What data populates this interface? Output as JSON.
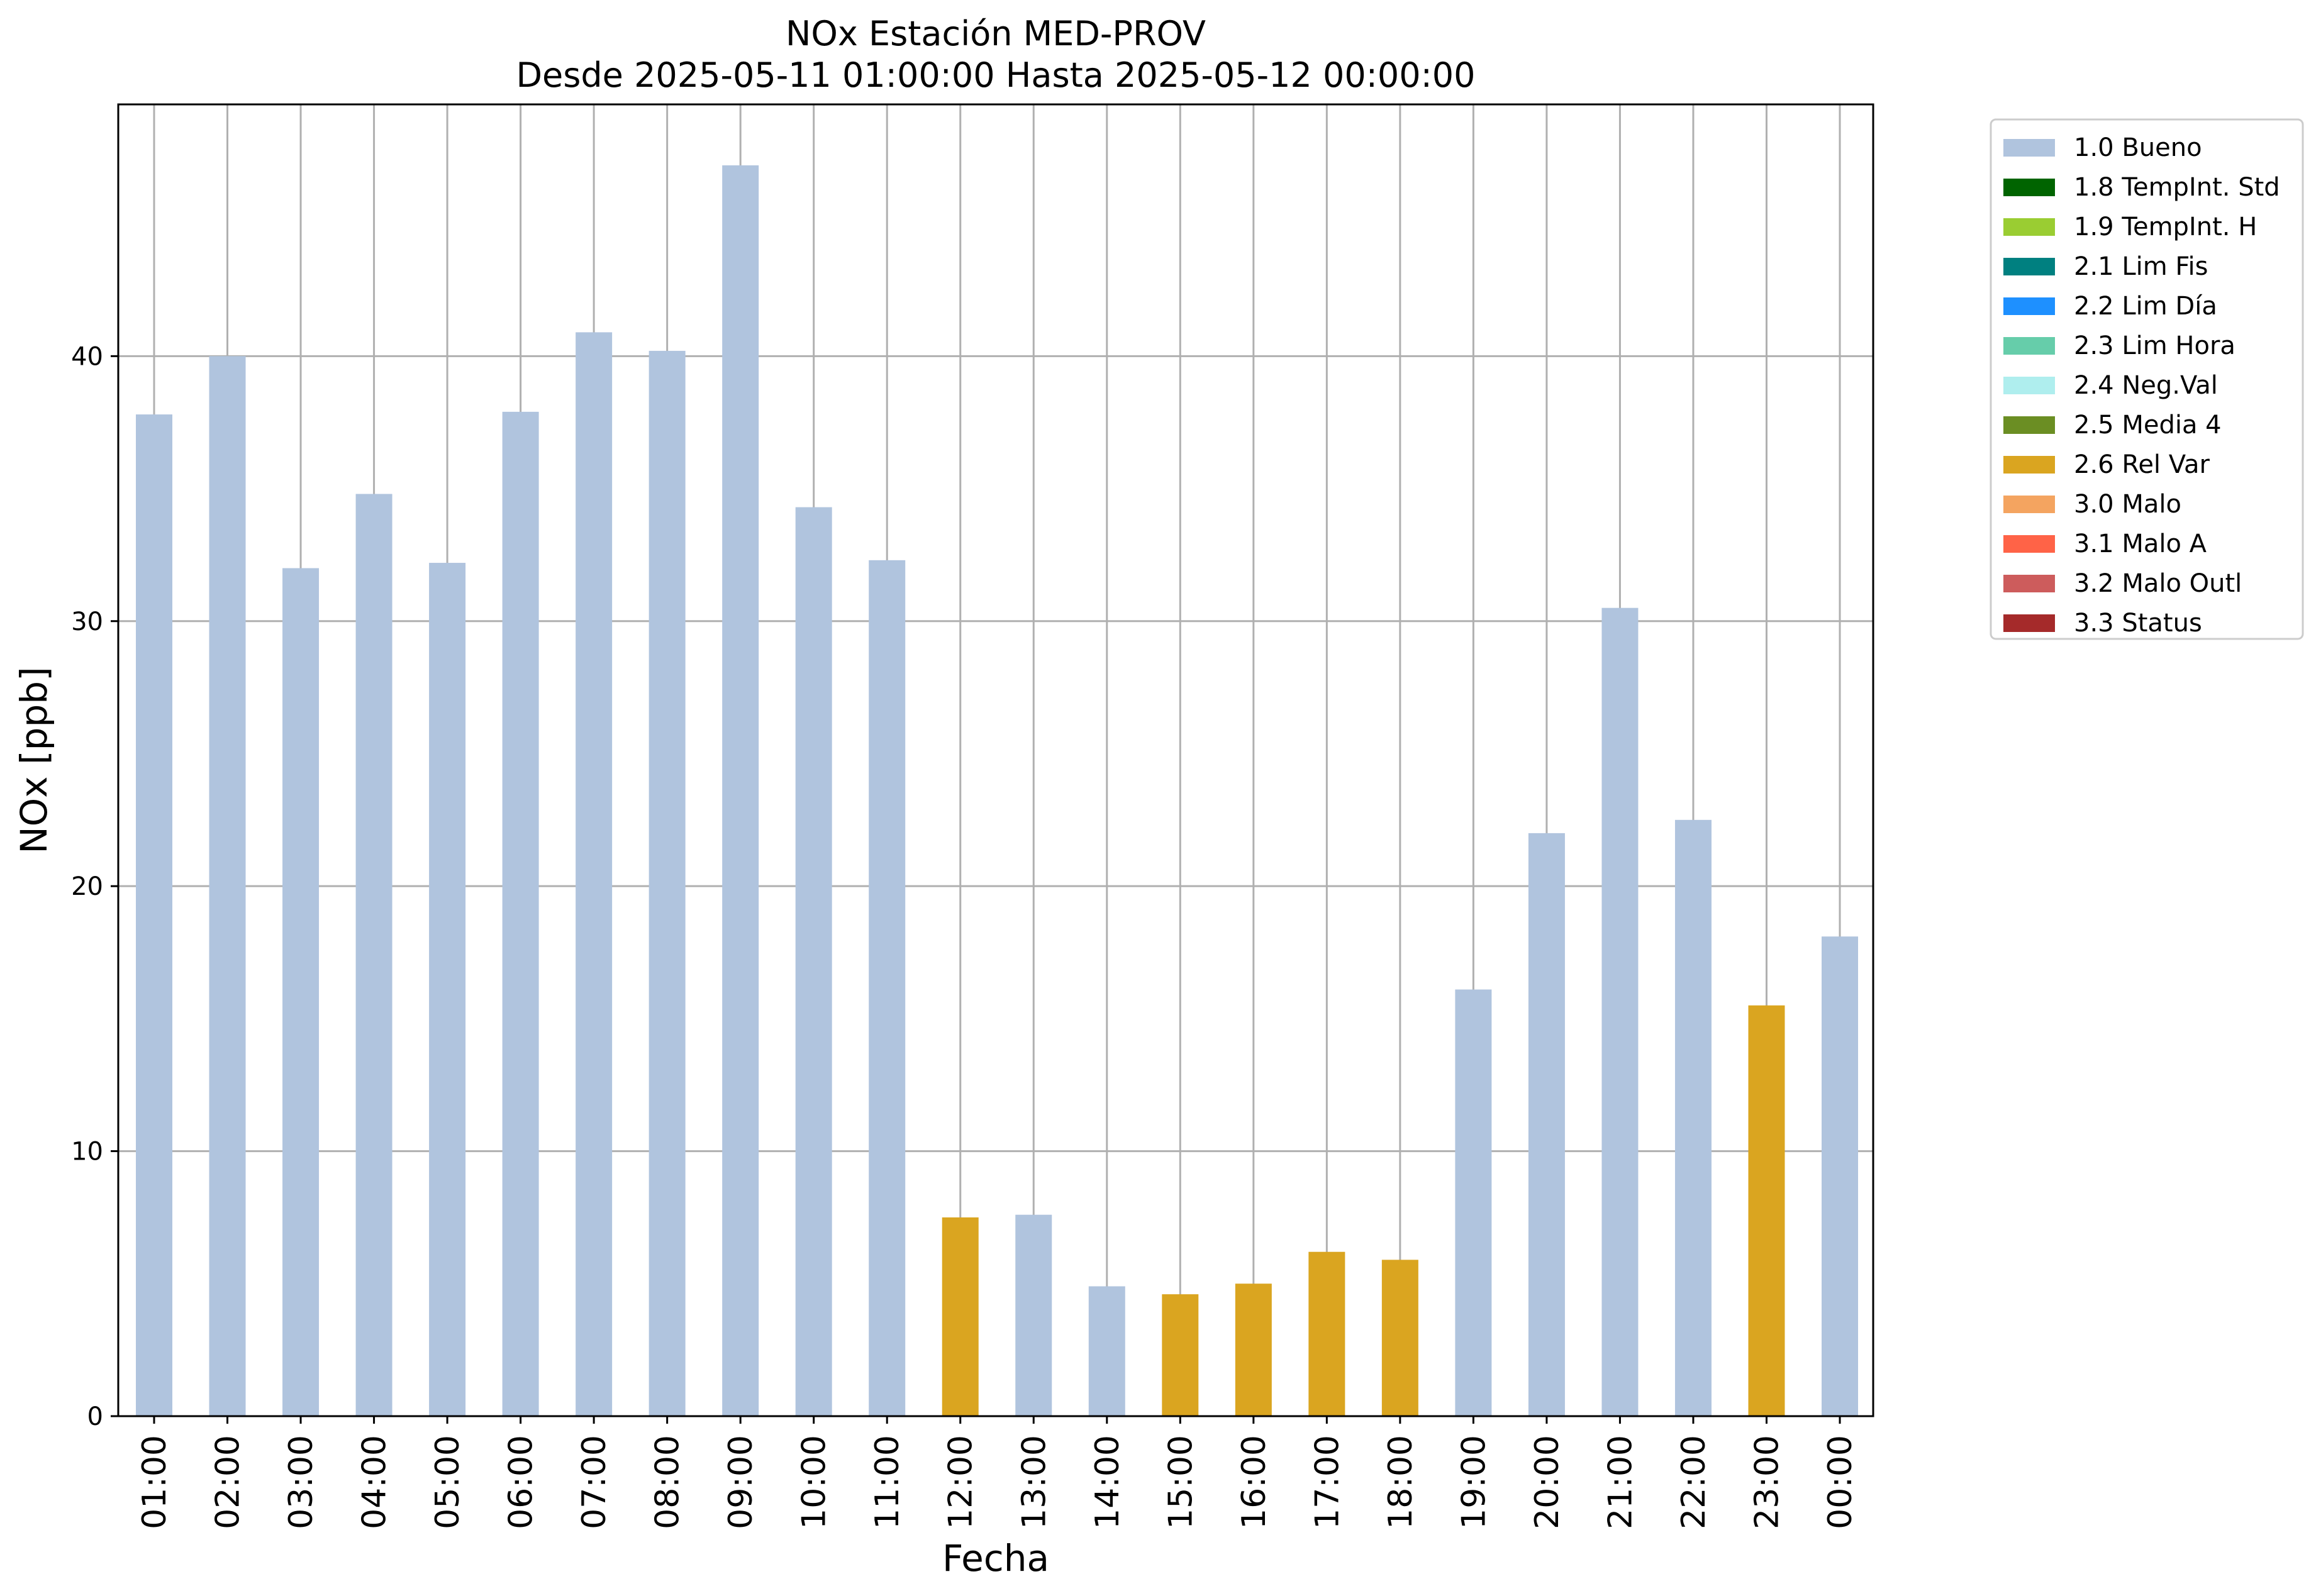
{
  "chart_data": {
    "type": "bar",
    "title": "NOx Estación MED-PROV",
    "subtitle": "Desde 2025-05-11 01:00:00 Hasta 2025-05-12 00:00:00",
    "xlabel": "Fecha",
    "ylabel": "NOx [ppb]",
    "ylim": [
      0,
      49.5
    ],
    "yticks": [
      0,
      10,
      20,
      30,
      40
    ],
    "grid": true,
    "legend_position": "outside-top-right",
    "categories": [
      "01:00",
      "02:00",
      "03:00",
      "04:00",
      "05:00",
      "06:00",
      "07:00",
      "08:00",
      "09:00",
      "10:00",
      "11:00",
      "12:00",
      "13:00",
      "14:00",
      "15:00",
      "16:00",
      "17:00",
      "18:00",
      "19:00",
      "20:00",
      "21:00",
      "22:00",
      "23:00",
      "00:00"
    ],
    "values": [
      37.8,
      40.0,
      32.0,
      34.8,
      32.2,
      37.9,
      40.9,
      40.2,
      47.2,
      34.3,
      32.3,
      7.5,
      7.6,
      4.9,
      4.6,
      5.0,
      6.2,
      5.9,
      16.1,
      22.0,
      30.5,
      22.5,
      15.5,
      18.1
    ],
    "flags": [
      "1.0 Bueno",
      "1.0 Bueno",
      "1.0 Bueno",
      "1.0 Bueno",
      "1.0 Bueno",
      "1.0 Bueno",
      "1.0 Bueno",
      "1.0 Bueno",
      "1.0 Bueno",
      "1.0 Bueno",
      "1.0 Bueno",
      "2.6 Rel Var",
      "1.0 Bueno",
      "1.0 Bueno",
      "2.6 Rel Var",
      "2.6 Rel Var",
      "2.6 Rel Var",
      "2.6 Rel Var",
      "1.0 Bueno",
      "1.0 Bueno",
      "1.0 Bueno",
      "1.0 Bueno",
      "2.6 Rel Var",
      "1.0 Bueno"
    ],
    "legend": [
      {
        "label": "1.0 Bueno",
        "color": "#b0c4de"
      },
      {
        "label": "1.8 TempInt. Std",
        "color": "#006400"
      },
      {
        "label": "1.9 TempInt. H",
        "color": "#9acd32"
      },
      {
        "label": "2.1 Lim Fis",
        "color": "#008080"
      },
      {
        "label": "2.2 Lim Día",
        "color": "#1e90ff"
      },
      {
        "label": "2.3 Lim Hora",
        "color": "#66cdaa"
      },
      {
        "label": "2.4 Neg.Val",
        "color": "#afeeee"
      },
      {
        "label": "2.5 Media 4",
        "color": "#6b8e23"
      },
      {
        "label": "2.6 Rel Var",
        "color": "#daa520"
      },
      {
        "label": "3.0 Malo",
        "color": "#f4a460"
      },
      {
        "label": "3.1 Malo A",
        "color": "#ff6347"
      },
      {
        "label": "3.2 Malo Outl",
        "color": "#cd5c5c"
      },
      {
        "label": "3.3 Status",
        "color": "#a52a2a"
      }
    ],
    "grid_color": "#b0b0b0"
  }
}
